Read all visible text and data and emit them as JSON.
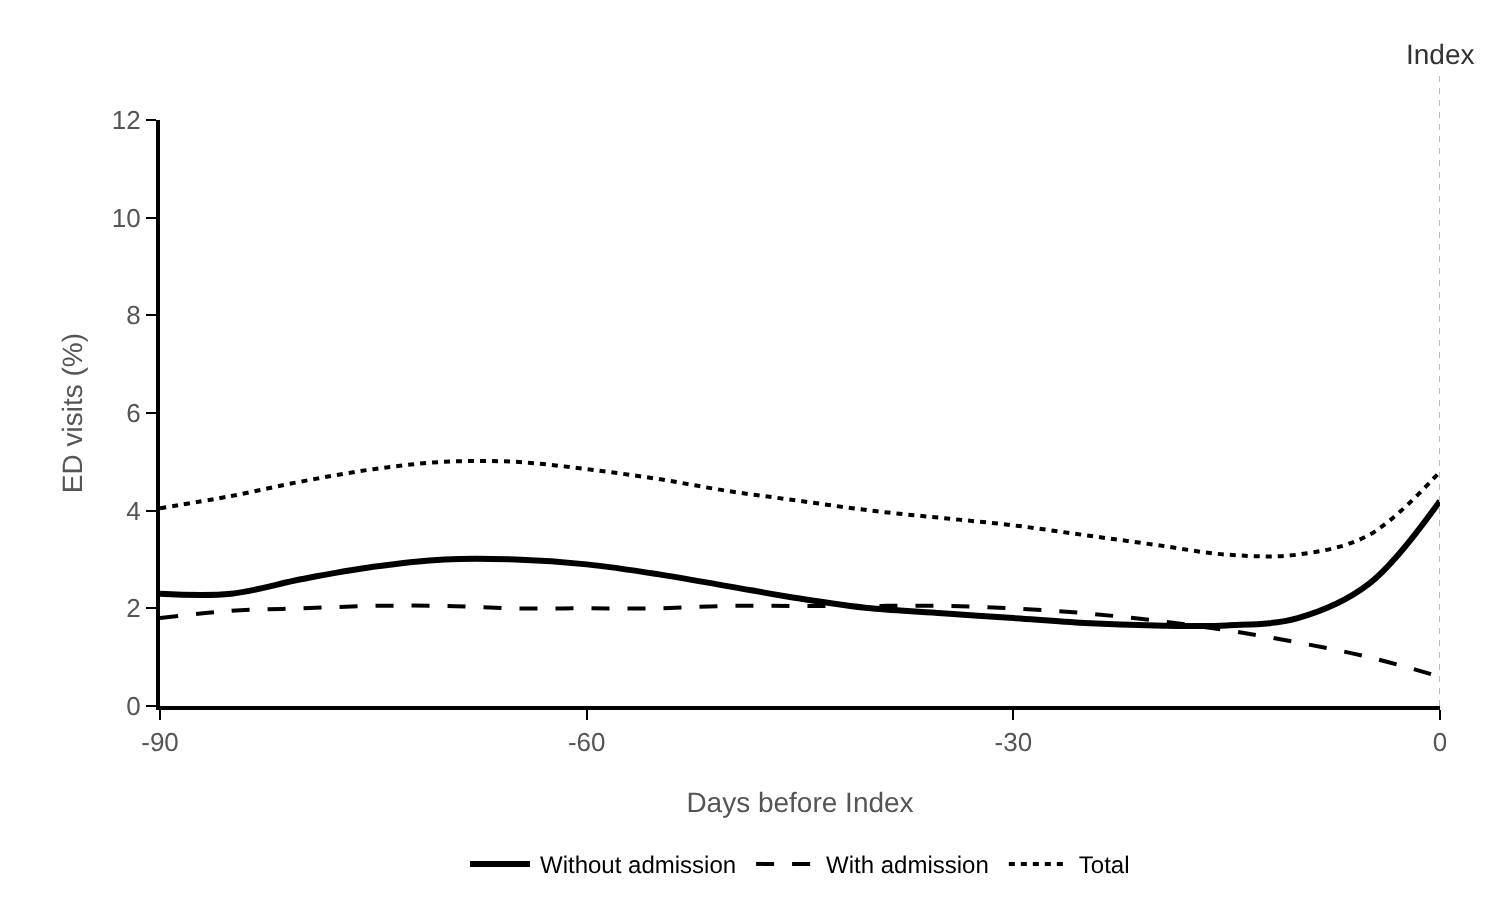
{
  "chart_data": {
    "type": "line",
    "xlabel": "Days before Index",
    "ylabel": "ED visits (%)",
    "x": [
      -90,
      -85,
      -80,
      -75,
      -70,
      -65,
      -60,
      -55,
      -50,
      -45,
      -40,
      -35,
      -30,
      -25,
      -20,
      -15,
      -10,
      -5,
      0
    ],
    "series": [
      {
        "name": "Without admission",
        "color": "#000000",
        "line_style": "solid",
        "values": [
          2.3,
          2.3,
          2.6,
          2.85,
          3.0,
          3.0,
          2.9,
          2.7,
          2.45,
          2.2,
          2.0,
          1.9,
          1.8,
          1.7,
          1.65,
          1.65,
          1.8,
          2.5,
          4.2
        ]
      },
      {
        "name": "With admission",
        "color": "#000000",
        "line_style": "dashed",
        "values": [
          1.8,
          1.95,
          2.0,
          2.05,
          2.05,
          2.0,
          2.0,
          2.0,
          2.05,
          2.05,
          2.05,
          2.05,
          2.0,
          1.9,
          1.75,
          1.55,
          1.3,
          1.0,
          0.6
        ]
      },
      {
        "name": "Total",
        "color": "#000000",
        "line_style": "dotted",
        "values": [
          4.05,
          4.3,
          4.6,
          4.85,
          5.0,
          5.0,
          4.85,
          4.65,
          4.4,
          4.2,
          4.0,
          3.85,
          3.7,
          3.5,
          3.3,
          3.1,
          3.1,
          3.5,
          4.8
        ]
      }
    ],
    "xlim": [
      -90,
      0
    ],
    "xticks": [
      -90,
      -60,
      -30,
      0
    ],
    "ylim": [
      0,
      12
    ],
    "yticks": [
      0,
      2,
      4,
      6,
      8,
      10,
      12
    ],
    "ref_lines": [
      {
        "axis": "x",
        "value": 0,
        "label": "Index",
        "color": "#bbbbbb",
        "line_style": "dotted"
      }
    ],
    "grid": false,
    "legend": "bottom",
    "marker": "none"
  }
}
